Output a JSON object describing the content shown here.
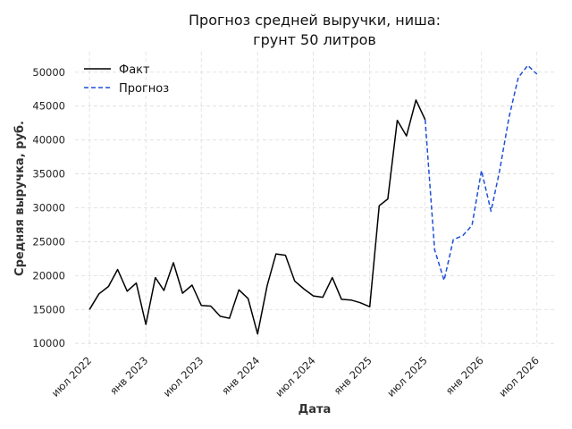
{
  "chart_data": {
    "type": "line",
    "title_lines": [
      "Прогноз средней выручки, ниша:",
      "грунт 50 литров"
    ],
    "xlabel": "Дата",
    "ylabel": "Средняя выручка, руб.",
    "x_ticks": [
      {
        "date": "2022-07-01",
        "label": "июл 2022"
      },
      {
        "date": "2023-01-01",
        "label": "янв 2023"
      },
      {
        "date": "2023-07-01",
        "label": "июл 2023"
      },
      {
        "date": "2024-01-01",
        "label": "янв 2024"
      },
      {
        "date": "2024-07-01",
        "label": "июл 2024"
      },
      {
        "date": "2025-01-01",
        "label": "янв 2025"
      },
      {
        "date": "2025-07-01",
        "label": "июл 2025"
      },
      {
        "date": "2026-01-01",
        "label": "янв 2026"
      },
      {
        "date": "2026-07-01",
        "label": "июл 2026"
      }
    ],
    "xlim": [
      "2022-05-15",
      "2026-09-01"
    ],
    "y_ticks": [
      10000,
      15000,
      20000,
      25000,
      30000,
      35000,
      40000,
      45000,
      50000
    ],
    "ylim": [
      9500,
      53000
    ],
    "grid": true,
    "legend_position": "top-left",
    "series": [
      {
        "name": "Факт",
        "color": "#000000",
        "style": "solid",
        "points": [
          {
            "x": "2022-07-01",
            "y": 15000
          },
          {
            "x": "2022-08-01",
            "y": 17300
          },
          {
            "x": "2022-09-01",
            "y": 18400
          },
          {
            "x": "2022-10-01",
            "y": 20900
          },
          {
            "x": "2022-11-01",
            "y": 17700
          },
          {
            "x": "2022-12-01",
            "y": 18900
          },
          {
            "x": "2023-01-01",
            "y": 12800
          },
          {
            "x": "2023-02-01",
            "y": 19700
          },
          {
            "x": "2023-03-01",
            "y": 17800
          },
          {
            "x": "2023-04-01",
            "y": 21900
          },
          {
            "x": "2023-05-01",
            "y": 17400
          },
          {
            "x": "2023-06-01",
            "y": 18600
          },
          {
            "x": "2023-07-01",
            "y": 15600
          },
          {
            "x": "2023-08-01",
            "y": 15500
          },
          {
            "x": "2023-09-01",
            "y": 14000
          },
          {
            "x": "2023-10-01",
            "y": 13700
          },
          {
            "x": "2023-11-01",
            "y": 17900
          },
          {
            "x": "2023-12-01",
            "y": 16600
          },
          {
            "x": "2024-01-01",
            "y": 11400
          },
          {
            "x": "2024-02-01",
            "y": 18500
          },
          {
            "x": "2024-03-01",
            "y": 23200
          },
          {
            "x": "2024-04-01",
            "y": 23000
          },
          {
            "x": "2024-05-01",
            "y": 19200
          },
          {
            "x": "2024-06-01",
            "y": 18000
          },
          {
            "x": "2024-07-01",
            "y": 17000
          },
          {
            "x": "2024-08-01",
            "y": 16800
          },
          {
            "x": "2024-09-01",
            "y": 19700
          },
          {
            "x": "2024-10-01",
            "y": 16500
          },
          {
            "x": "2024-11-01",
            "y": 16400
          },
          {
            "x": "2024-12-01",
            "y": 16000
          },
          {
            "x": "2025-01-01",
            "y": 15400
          },
          {
            "x": "2025-02-01",
            "y": 30300
          },
          {
            "x": "2025-03-01",
            "y": 31300
          },
          {
            "x": "2025-04-01",
            "y": 42900
          },
          {
            "x": "2025-05-01",
            "y": 40600
          },
          {
            "x": "2025-06-01",
            "y": 45900
          },
          {
            "x": "2025-07-01",
            "y": 43000
          }
        ]
      },
      {
        "name": "Прогноз",
        "color": "#1f4fd9",
        "style": "dashed",
        "points": [
          {
            "x": "2025-07-01",
            "y": 43000
          },
          {
            "x": "2025-08-01",
            "y": 23800
          },
          {
            "x": "2025-09-01",
            "y": 19300
          },
          {
            "x": "2025-10-01",
            "y": 25300
          },
          {
            "x": "2025-11-01",
            "y": 25900
          },
          {
            "x": "2025-12-01",
            "y": 27400
          },
          {
            "x": "2026-01-01",
            "y": 35500
          },
          {
            "x": "2026-02-01",
            "y": 29500
          },
          {
            "x": "2026-03-01",
            "y": 35400
          },
          {
            "x": "2026-04-01",
            "y": 43400
          },
          {
            "x": "2026-05-01",
            "y": 49200
          },
          {
            "x": "2026-06-01",
            "y": 51000
          },
          {
            "x": "2026-07-01",
            "y": 49700
          }
        ]
      }
    ]
  }
}
